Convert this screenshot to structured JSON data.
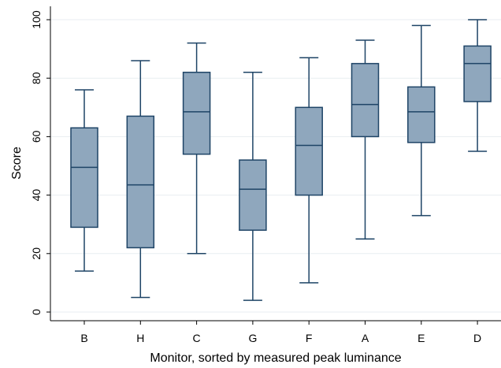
{
  "chart_data": {
    "type": "box",
    "title": "",
    "xlabel": "Monitor, sorted by measured peak luminance",
    "ylabel": "Score",
    "ylim": [
      0,
      100
    ],
    "yticks": [
      0,
      20,
      40,
      60,
      80,
      100
    ],
    "grid": true,
    "colors": {
      "box_fill": "#8fa7bd",
      "box_stroke": "#1e4466",
      "grid": "#e8edf1",
      "axis": "#000000"
    },
    "categories": [
      "B",
      "H",
      "C",
      "G",
      "F",
      "A",
      "E",
      "D"
    ],
    "boxes": [
      {
        "label": "B",
        "min": 14,
        "q1": 29,
        "median": 49.5,
        "q3": 63,
        "max": 76
      },
      {
        "label": "H",
        "min": 5,
        "q1": 22,
        "median": 43.5,
        "q3": 67,
        "max": 86
      },
      {
        "label": "C",
        "min": 20,
        "q1": 54,
        "median": 68.5,
        "q3": 82,
        "max": 92
      },
      {
        "label": "G",
        "min": 4,
        "q1": 28,
        "median": 42,
        "q3": 52,
        "max": 82
      },
      {
        "label": "F",
        "min": 10,
        "q1": 40,
        "median": 57,
        "q3": 70,
        "max": 87
      },
      {
        "label": "A",
        "min": 25,
        "q1": 60,
        "median": 71,
        "q3": 85,
        "max": 93
      },
      {
        "label": "E",
        "min": 33,
        "q1": 58,
        "median": 68.5,
        "q3": 77,
        "max": 98
      },
      {
        "label": "D",
        "min": 55,
        "q1": 72,
        "median": 85,
        "q3": 91,
        "max": 100
      }
    ]
  }
}
